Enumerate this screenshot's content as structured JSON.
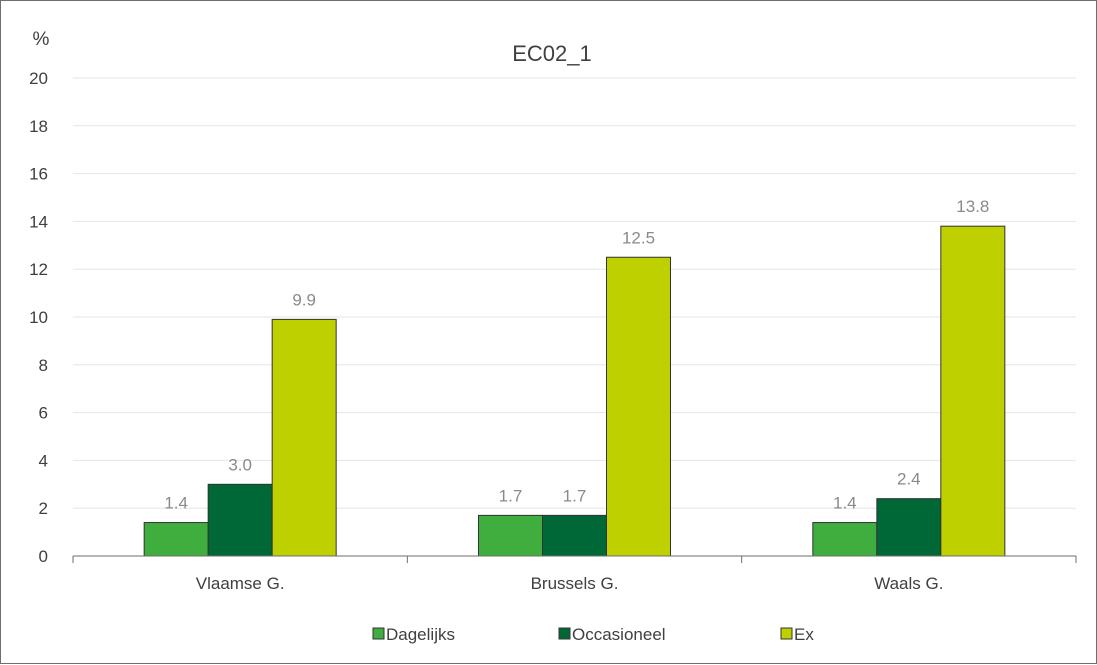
{
  "chart_data": {
    "type": "bar",
    "title": "EC02_1",
    "ylabel": "%",
    "xlabel": "",
    "categories": [
      "Vlaamse G.",
      "Brussels G.",
      "Waals G."
    ],
    "series": [
      {
        "name": "Dagelijks",
        "values": [
          1.4,
          1.7,
          1.4
        ],
        "color": "#3fae3f"
      },
      {
        "name": "Occasioneel",
        "values": [
          3.0,
          1.7,
          2.4
        ],
        "color": "#006837"
      },
      {
        "name": "Ex",
        "values": [
          9.9,
          12.5,
          13.8
        ],
        "color": "#bfd000"
      }
    ],
    "value_labels": [
      [
        "1.4",
        "1.7",
        "1.4"
      ],
      [
        "3.0",
        "1.7",
        "2.4"
      ],
      [
        "9.9",
        "12.5",
        "13.8"
      ]
    ],
    "ylim": [
      0,
      20
    ],
    "yticks": [
      "0",
      "2",
      "4",
      "6",
      "8",
      "10",
      "12",
      "14",
      "16",
      "18",
      "20"
    ],
    "grid": true,
    "legend_position": "bottom"
  }
}
